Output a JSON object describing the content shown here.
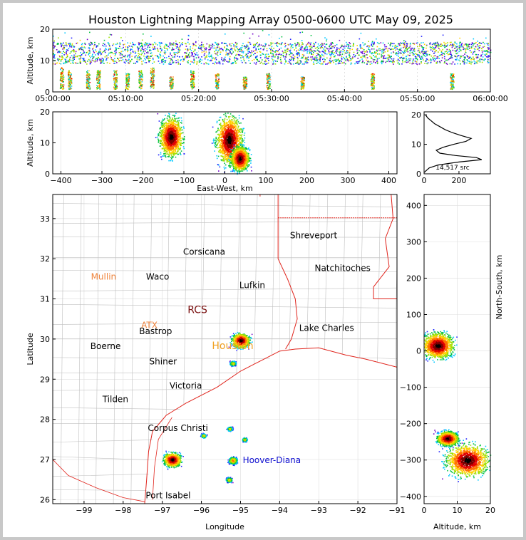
{
  "title": "Houston Lightning Mapping Array 0500-0600 UTC May 09, 2025",
  "colors": {
    "frame": "#c8c8c8",
    "state_border": "#e0241c",
    "county_line": "#bcbcbc",
    "coast": "#e0241c"
  },
  "chart_data": [
    {
      "id": "time-height",
      "type": "scatter",
      "ylabel": "Altitude, km",
      "xlabel": "",
      "ylim": [
        0,
        20
      ],
      "yticks": [
        "0",
        "10",
        "20"
      ],
      "xticks": [
        "05:00:00",
        "05:10:00",
        "05:20:00",
        "05:30:00",
        "05:40:00",
        "05:50:00",
        "06:00:00"
      ],
      "xlim_min": [
        0,
        60
      ],
      "upper_band_km": [
        9,
        16
      ],
      "cells": [
        {
          "t": 1.2,
          "top": 8
        },
        {
          "t": 2.3,
          "top": 7
        },
        {
          "t": 4.8,
          "top": 7
        },
        {
          "t": 6.2,
          "top": 7
        },
        {
          "t": 8.5,
          "top": 7
        },
        {
          "t": 10.2,
          "top": 6
        },
        {
          "t": 12.0,
          "top": 7
        },
        {
          "t": 13.6,
          "top": 8
        },
        {
          "t": 16.2,
          "top": 5
        },
        {
          "t": 19.1,
          "top": 7
        },
        {
          "t": 22.5,
          "top": 6
        },
        {
          "t": 26.3,
          "top": 5
        },
        {
          "t": 29.5,
          "top": 6
        },
        {
          "t": 34.2,
          "top": 5
        },
        {
          "t": 43.8,
          "top": 6
        },
        {
          "t": 54.7,
          "top": 6
        }
      ]
    },
    {
      "id": "ew-height",
      "type": "heatmap",
      "xlabel": "East-West, km",
      "ylabel": "Altitude, km",
      "xlim": [
        -420,
        420
      ],
      "ylim": [
        0,
        20
      ],
      "xticks": [
        "−400",
        "−300",
        "−200",
        "−100",
        "0",
        "100",
        "200",
        "300",
        "400"
      ],
      "yticks": [
        "0",
        "10",
        "20"
      ],
      "clusters": [
        {
          "x": -132,
          "z": 12,
          "sx": 18,
          "sz": 4
        },
        {
          "x": 10,
          "z": 11,
          "sx": 20,
          "sz": 5
        },
        {
          "x": 36,
          "z": 5,
          "sx": 14,
          "sz": 2.5
        }
      ]
    },
    {
      "id": "alt-histogram",
      "type": "line",
      "xlabel": "",
      "ylabel": "",
      "xlim": [
        0,
        380
      ],
      "ylim": [
        0,
        21
      ],
      "xticks": [
        "0",
        "200"
      ],
      "yticks": [
        "0",
        "10",
        "20"
      ],
      "annotation": "14,517 src",
      "points": [
        [
          2,
          0.5
        ],
        [
          10,
          1
        ],
        [
          30,
          2
        ],
        [
          80,
          3
        ],
        [
          200,
          4
        ],
        [
          330,
          4.8
        ],
        [
          300,
          5.5
        ],
        [
          180,
          6.2
        ],
        [
          90,
          7
        ],
        [
          70,
          8
        ],
        [
          110,
          9
        ],
        [
          170,
          10
        ],
        [
          240,
          11
        ],
        [
          270,
          12
        ],
        [
          210,
          13
        ],
        [
          160,
          14
        ],
        [
          120,
          15
        ],
        [
          90,
          16
        ],
        [
          60,
          17
        ],
        [
          40,
          18
        ],
        [
          20,
          19
        ],
        [
          8,
          20
        ]
      ]
    },
    {
      "id": "map",
      "type": "scatter",
      "xlabel": "Longitude",
      "ylabel": "Latitude",
      "xlim": [
        -99.8,
        -91
      ],
      "ylim": [
        25.9,
        33.6
      ],
      "xticks": [
        "−99",
        "−98",
        "−97",
        "−96",
        "−95",
        "−94",
        "−93",
        "−92",
        "−91"
      ],
      "yticks": [
        "26",
        "27",
        "28",
        "29",
        "30",
        "31",
        "32",
        "33"
      ],
      "cities": [
        {
          "name": "Shreveport",
          "lon": -93.13,
          "lat": 32.58,
          "color": "#000000"
        },
        {
          "name": "Corsicana",
          "lon": -95.93,
          "lat": 32.17,
          "color": "#000000"
        },
        {
          "name": "Natchitoches",
          "lon": -92.39,
          "lat": 31.76,
          "color": "#000000"
        },
        {
          "name": "Mullin",
          "lon": -98.5,
          "lat": 31.55,
          "color": "#f0843c"
        },
        {
          "name": "Waco",
          "lon": -97.12,
          "lat": 31.55,
          "color": "#000000"
        },
        {
          "name": "Lufkin",
          "lon": -94.7,
          "lat": 31.34,
          "color": "#000000"
        },
        {
          "name": "RCS",
          "lon": -96.1,
          "lat": 30.72,
          "color": "#7a1010"
        },
        {
          "name": "ATX",
          "lon": -97.33,
          "lat": 30.34,
          "color": "#f0843c"
        },
        {
          "name": "Bastrop",
          "lon": -97.17,
          "lat": 30.19,
          "color": "#000000"
        },
        {
          "name": "Lake Charles",
          "lon": -92.8,
          "lat": 30.27,
          "color": "#000000"
        },
        {
          "name": "Boerne",
          "lon": -98.45,
          "lat": 29.82,
          "color": "#000000"
        },
        {
          "name": "Houston",
          "lon": -95.2,
          "lat": 29.82,
          "color": "#f0a020"
        },
        {
          "name": "Shiner",
          "lon": -96.98,
          "lat": 29.44,
          "color": "#000000"
        },
        {
          "name": "Victoria",
          "lon": -96.4,
          "lat": 28.84,
          "color": "#000000"
        },
        {
          "name": "Tilden",
          "lon": -98.2,
          "lat": 28.5,
          "color": "#000000"
        },
        {
          "name": "Corpus Christi",
          "lon": -96.6,
          "lat": 27.78,
          "color": "#000000"
        },
        {
          "name": "Hoover-Diana",
          "lon": -94.2,
          "lat": 26.98,
          "color": "#1010d0"
        },
        {
          "name": "Port Isabel",
          "lon": -96.85,
          "lat": 26.1,
          "color": "#000000"
        }
      ],
      "storms": [
        {
          "lon": -95.0,
          "lat": 29.97,
          "r": 1.0
        },
        {
          "lon": -96.75,
          "lat": 27.0,
          "r": 1.0
        },
        {
          "lon": -95.2,
          "lat": 26.98,
          "r": 0.5
        },
        {
          "lon": -95.95,
          "lat": 27.6,
          "r": 0.3
        },
        {
          "lon": -95.28,
          "lat": 27.77,
          "r": 0.3
        },
        {
          "lon": -94.9,
          "lat": 27.5,
          "r": 0.3
        },
        {
          "lon": -95.3,
          "lat": 26.5,
          "r": 0.35
        },
        {
          "lon": -95.2,
          "lat": 29.4,
          "r": 0.35
        }
      ]
    },
    {
      "id": "ns-height",
      "type": "heatmap",
      "xlabel": "Altitude, km",
      "ylabel": "North-South, km",
      "xlim": [
        0,
        20
      ],
      "ylim": [
        -420,
        430
      ],
      "xticks": [
        "0",
        "10",
        "20"
      ],
      "yticks": [
        "−400",
        "−300",
        "−200",
        "−100",
        "0",
        "100",
        "200",
        "300",
        "400"
      ],
      "clusters": [
        {
          "z": 4,
          "y": 15,
          "sz": 3,
          "sy": 22
        },
        {
          "z": 13,
          "y": -300,
          "sz": 4,
          "sy": 28
        },
        {
          "z": 7,
          "y": -240,
          "sz": 2,
          "sy": 12
        }
      ]
    }
  ]
}
